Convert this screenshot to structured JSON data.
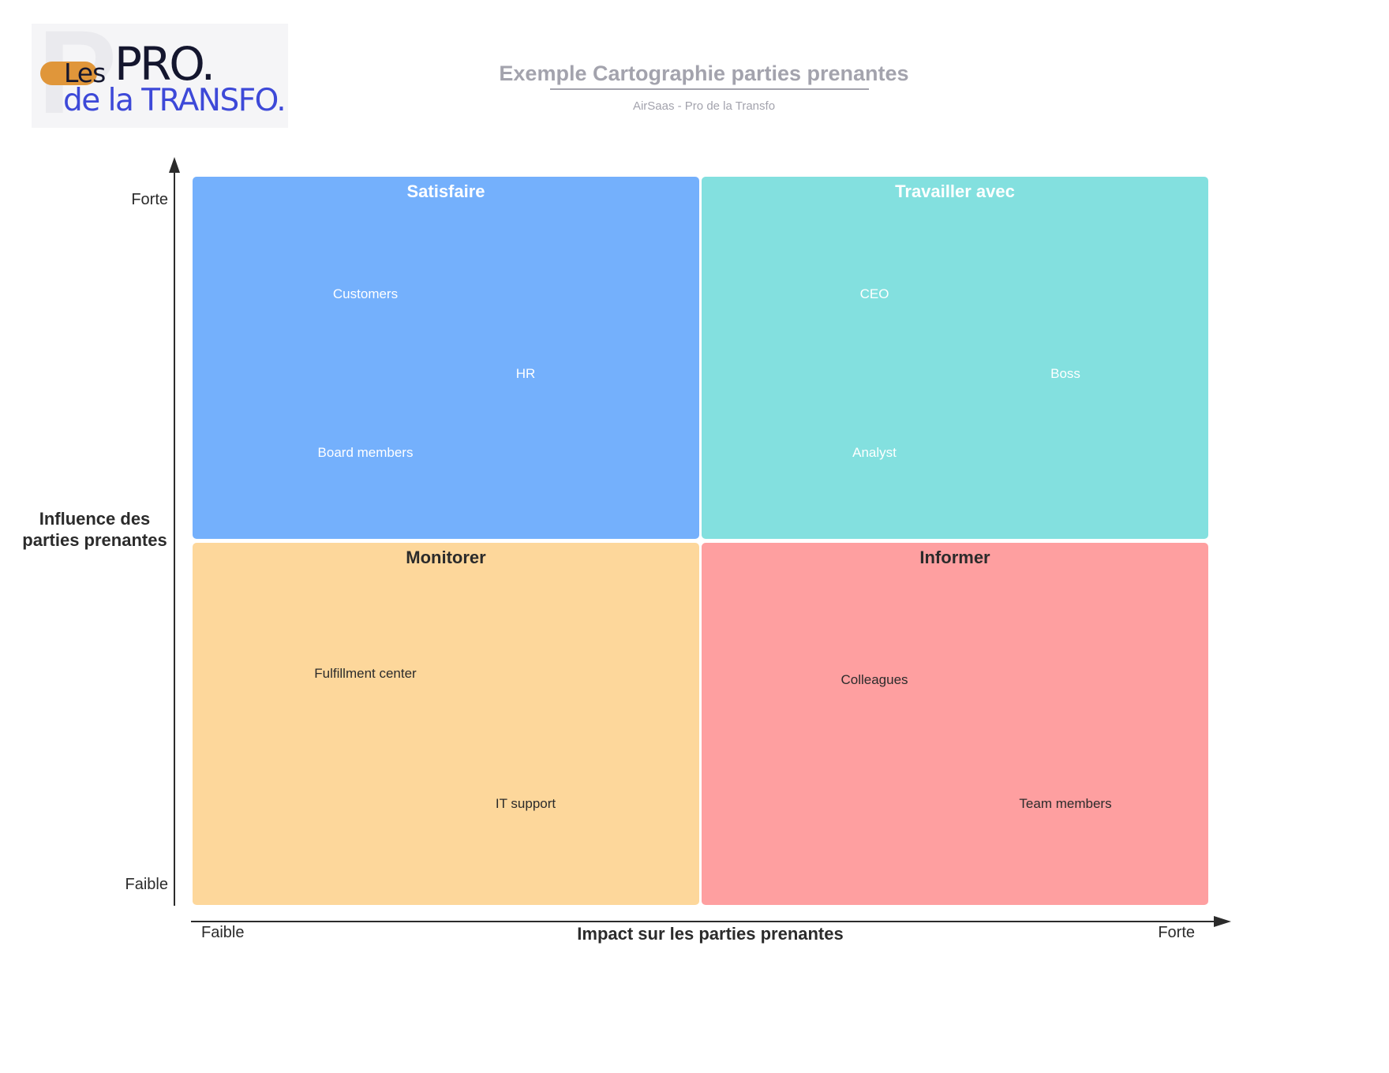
{
  "logo": {
    "big_letter": "P",
    "word_les": "Les",
    "word_pro": "PRO.",
    "word_transfo": "de la TRANSFO."
  },
  "header": {
    "title": "Exemple Cartographie parties prenantes",
    "subtitle": "AirSaas - Pro de la Transfo"
  },
  "axes": {
    "y_title": "Influence des parties prenantes",
    "y_high": "Forte",
    "y_low": "Faible",
    "x_title": "Impact sur les parties prenantes",
    "x_low": "Faible",
    "x_high": "Forte"
  },
  "colors": {
    "satisfaire": "#74b0fc",
    "travailler_avec": "#83e0df",
    "monitorer": "#fdd79b",
    "informer": "#fe9fa0",
    "light_text": "#ffffff",
    "dark_text": "#2b2b2b",
    "axis": "#2b2b2b",
    "title": "#a3a3ad",
    "logo_orange": "#e0963a",
    "logo_navy": "#14162e",
    "logo_blue": "#3d49d8"
  },
  "quadrants": {
    "satisfaire": {
      "title": "Satisfaire",
      "items": [
        "Customers",
        "HR",
        "Board members"
      ]
    },
    "travailler_avec": {
      "title": "Travailler avec",
      "items": [
        "CEO",
        "Boss",
        "Analyst"
      ]
    },
    "monitorer": {
      "title": "Monitorer",
      "items": [
        "Fulfillment center",
        "IT support"
      ]
    },
    "informer": {
      "title": "Informer",
      "items": [
        "Colleagues",
        "Team members"
      ]
    }
  }
}
